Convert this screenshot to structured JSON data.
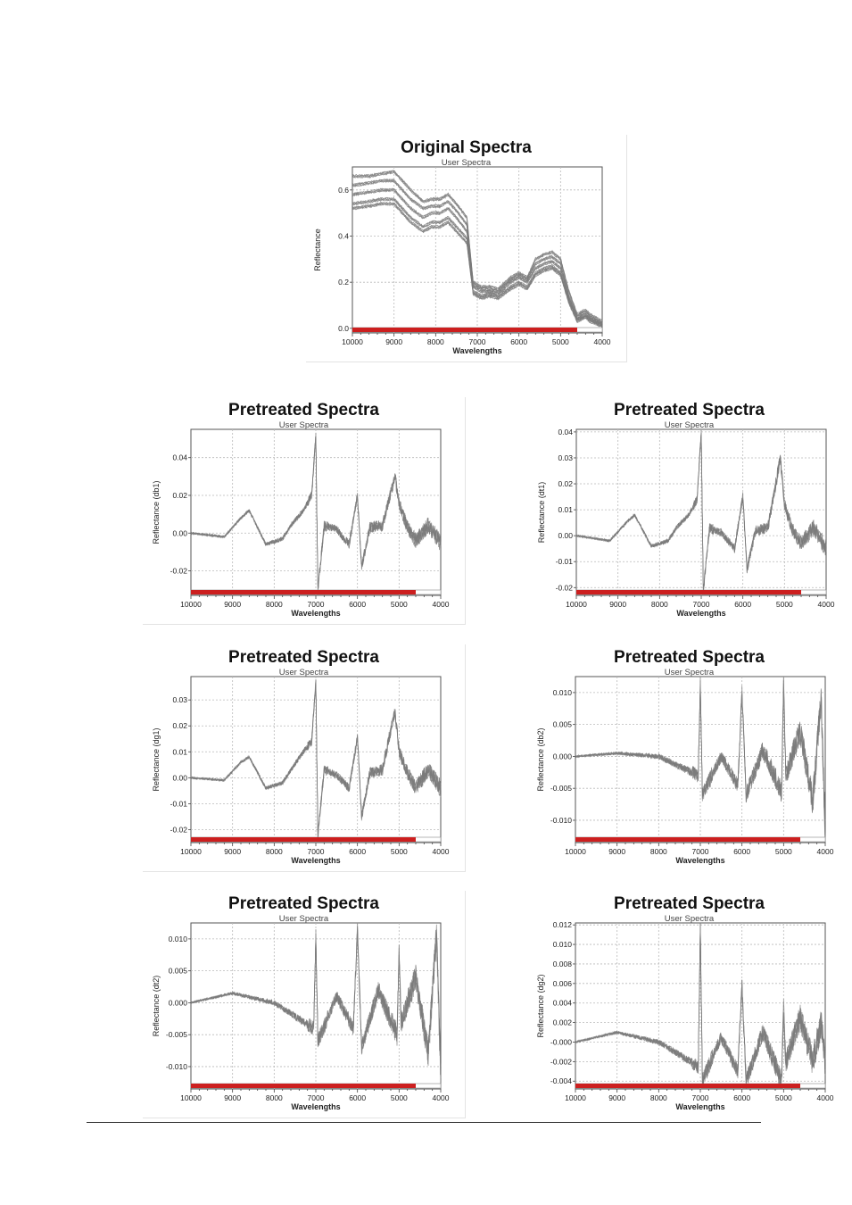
{
  "chart_data": [
    {
      "type": "line",
      "title": "Original Spectra",
      "subtitle": "User Spectra",
      "xlabel": "Wavelengths",
      "ylabel": "Reflectance",
      "xlim": [
        10000,
        4000
      ],
      "ylim": [
        -0.02,
        0.7
      ],
      "xticks": [
        10000,
        9000,
        8000,
        7000,
        6000,
        5000,
        4000
      ],
      "yticks": [
        0.0,
        0.2,
        0.4,
        0.6
      ],
      "ytick_labels": [
        "0.0",
        "0.2",
        "0.4",
        "0.6"
      ],
      "grid": true,
      "range_bar": [
        10000,
        4600
      ],
      "line_color": "#7a7a7a",
      "shape": "original",
      "x": [
        10000,
        9600,
        9300,
        9000,
        8800,
        8600,
        8300,
        8100,
        7900,
        7700,
        7500,
        7250,
        7100,
        6900,
        6700,
        6500,
        6200,
        6000,
        5800,
        5600,
        5400,
        5200,
        5000,
        4800,
        4600,
        4400,
        4300,
        4000
      ],
      "series": [
        {
          "values": [
            0.66,
            0.66,
            0.67,
            0.68,
            0.64,
            0.6,
            0.55,
            0.56,
            0.56,
            0.58,
            0.54,
            0.48,
            0.2,
            0.18,
            0.18,
            0.17,
            0.22,
            0.24,
            0.22,
            0.3,
            0.32,
            0.33,
            0.3,
            0.16,
            0.06,
            0.08,
            0.06,
            0.03
          ]
        },
        {
          "values": [
            0.62,
            0.63,
            0.64,
            0.64,
            0.6,
            0.56,
            0.52,
            0.53,
            0.53,
            0.55,
            0.51,
            0.45,
            0.19,
            0.17,
            0.17,
            0.16,
            0.21,
            0.23,
            0.21,
            0.28,
            0.3,
            0.31,
            0.28,
            0.14,
            0.05,
            0.07,
            0.05,
            0.02
          ]
        },
        {
          "values": [
            0.58,
            0.59,
            0.6,
            0.6,
            0.56,
            0.52,
            0.48,
            0.5,
            0.5,
            0.52,
            0.48,
            0.42,
            0.18,
            0.16,
            0.16,
            0.15,
            0.2,
            0.22,
            0.2,
            0.26,
            0.28,
            0.29,
            0.26,
            0.13,
            0.04,
            0.06,
            0.04,
            0.02
          ]
        },
        {
          "values": [
            0.54,
            0.55,
            0.56,
            0.56,
            0.52,
            0.48,
            0.44,
            0.46,
            0.46,
            0.48,
            0.44,
            0.39,
            0.16,
            0.14,
            0.15,
            0.14,
            0.18,
            0.2,
            0.18,
            0.24,
            0.26,
            0.27,
            0.24,
            0.12,
            0.04,
            0.05,
            0.04,
            0.01
          ]
        },
        {
          "values": [
            0.52,
            0.53,
            0.54,
            0.54,
            0.5,
            0.46,
            0.42,
            0.44,
            0.44,
            0.46,
            0.42,
            0.37,
            0.15,
            0.13,
            0.14,
            0.13,
            0.17,
            0.19,
            0.17,
            0.23,
            0.25,
            0.26,
            0.23,
            0.11,
            0.03,
            0.05,
            0.03,
            0.01
          ]
        }
      ]
    },
    {
      "type": "line",
      "title": "Pretreated Spectra",
      "subtitle": "User Spectra",
      "xlabel": "Wavelengths",
      "ylabel": "Reflectance (db1)",
      "xlim": [
        10000,
        4000
      ],
      "ylim": [
        -0.033,
        0.055
      ],
      "xticks": [
        10000,
        9000,
        8000,
        7000,
        6000,
        5000,
        4000
      ],
      "yticks": [
        -0.02,
        0.0,
        0.02,
        0.04
      ],
      "ytick_labels": [
        "-0.02",
        "0.00",
        "0.02",
        "0.04"
      ],
      "grid": true,
      "range_bar": [
        10000,
        4600
      ],
      "line_color": "#7a7a7a",
      "shape": "deriv1",
      "x": [
        10000,
        9200,
        8800,
        8600,
        8400,
        8200,
        7800,
        7600,
        7300,
        7100,
        7000,
        6950,
        6800,
        6500,
        6200,
        6000,
        5900,
        5700,
        5400,
        5100,
        5000,
        4800,
        4600,
        4300,
        4000
      ],
      "series": [
        {
          "values": [
            0.0,
            -0.002,
            0.008,
            0.012,
            0.003,
            -0.006,
            -0.003,
            0.004,
            0.012,
            0.02,
            0.052,
            -0.03,
            0.004,
            0.002,
            -0.006,
            0.02,
            -0.018,
            0.003,
            0.004,
            0.03,
            0.016,
            0.003,
            -0.004,
            0.004,
            -0.005
          ]
        }
      ]
    },
    {
      "type": "line",
      "title": "Pretreated Spectra",
      "subtitle": "User Spectra",
      "xlabel": "Wavelengths",
      "ylabel": "Reflectance (dt1)",
      "xlim": [
        10000,
        4000
      ],
      "ylim": [
        -0.023,
        0.041
      ],
      "xticks": [
        10000,
        9000,
        8000,
        7000,
        6000,
        5000,
        4000
      ],
      "yticks": [
        -0.02,
        -0.01,
        0.0,
        0.01,
        0.02,
        0.03,
        0.04
      ],
      "ytick_labels": [
        "-0.02",
        "-0.01",
        "0.00",
        "0.01",
        "0.02",
        "0.03",
        "0.04"
      ],
      "grid": true,
      "range_bar": [
        10000,
        4600
      ],
      "line_color": "#7a7a7a",
      "shape": "deriv1",
      "x": [
        10000,
        9200,
        8800,
        8600,
        8400,
        8200,
        7800,
        7600,
        7300,
        7100,
        7000,
        6950,
        6800,
        6500,
        6200,
        6000,
        5900,
        5700,
        5400,
        5100,
        5000,
        4800,
        4600,
        4300,
        4000
      ],
      "series": [
        {
          "values": [
            0.0,
            -0.002,
            0.005,
            0.008,
            0.002,
            -0.004,
            -0.002,
            0.003,
            0.008,
            0.014,
            0.04,
            -0.021,
            0.003,
            0.001,
            -0.005,
            0.015,
            -0.013,
            0.002,
            0.003,
            0.03,
            0.012,
            0.002,
            -0.003,
            0.003,
            -0.005
          ]
        }
      ]
    },
    {
      "type": "line",
      "title": "Pretreated Spectra",
      "subtitle": "User Spectra",
      "xlabel": "Wavelengths",
      "ylabel": "Reflectance (dg1)",
      "xlim": [
        10000,
        4000
      ],
      "ylim": [
        -0.025,
        0.039
      ],
      "xticks": [
        10000,
        9000,
        8000,
        7000,
        6000,
        5000,
        4000
      ],
      "yticks": [
        -0.02,
        -0.01,
        0.0,
        0.01,
        0.02,
        0.03
      ],
      "ytick_labels": [
        "-0.02",
        "-0.01",
        "0.00",
        "0.01",
        "0.02",
        "0.03"
      ],
      "grid": true,
      "range_bar": [
        10000,
        4600
      ],
      "line_color": "#7a7a7a",
      "shape": "deriv1",
      "x": [
        10000,
        9200,
        8800,
        8600,
        8400,
        8200,
        7800,
        7600,
        7300,
        7100,
        7000,
        6950,
        6800,
        6500,
        6200,
        6000,
        5900,
        5700,
        5400,
        5100,
        5000,
        4800,
        4600,
        4300,
        4000
      ],
      "series": [
        {
          "values": [
            0.0,
            -0.001,
            0.006,
            0.008,
            0.002,
            -0.004,
            -0.002,
            0.003,
            0.01,
            0.014,
            0.037,
            -0.022,
            0.003,
            0.001,
            -0.004,
            0.016,
            -0.015,
            0.002,
            0.003,
            0.026,
            0.01,
            0.002,
            -0.004,
            0.003,
            -0.004
          ]
        }
      ]
    },
    {
      "type": "line",
      "title": "Pretreated Spectra",
      "subtitle": "User Spectra",
      "xlabel": "Wavelengths",
      "ylabel": "Reflectance (db2)",
      "xlim": [
        10000,
        4000
      ],
      "ylim": [
        -0.0135,
        0.0125
      ],
      "xticks": [
        10000,
        9000,
        8000,
        7000,
        6000,
        5000,
        4000
      ],
      "yticks": [
        -0.01,
        -0.005,
        0.0,
        0.005,
        0.01
      ],
      "ytick_labels": [
        "-0.010",
        "-0.005",
        "0.000",
        "0.005",
        "0.010"
      ],
      "grid": true,
      "range_bar": [
        10000,
        4600
      ],
      "line_color": "#7a7a7a",
      "shape": "deriv2",
      "x": [
        10000,
        9000,
        8000,
        7050,
        7000,
        6950,
        6500,
        6100,
        6000,
        5900,
        5500,
        5050,
        5000,
        4950,
        4600,
        4300,
        4100,
        4000
      ],
      "series": [
        {
          "values": [
            0.0,
            0.0005,
            0.0,
            -0.003,
            0.0115,
            -0.006,
            0.0,
            -0.0045,
            0.01,
            -0.006,
            0.001,
            -0.0055,
            0.0115,
            -0.003,
            0.004,
            -0.007,
            0.009,
            -0.012
          ]
        }
      ]
    },
    {
      "type": "line",
      "title": "Pretreated Spectra",
      "subtitle": "User Spectra",
      "xlabel": "Wavelengths",
      "ylabel": "Reflectance (dt2)",
      "xlim": [
        10000,
        4000
      ],
      "ylim": [
        -0.0135,
        0.0125
      ],
      "xticks": [
        10000,
        9000,
        8000,
        7000,
        6000,
        5000,
        4000
      ],
      "yticks": [
        -0.01,
        -0.005,
        0.0,
        0.005,
        0.01
      ],
      "ytick_labels": [
        "-0.010",
        "-0.005",
        "0.000",
        "0.005",
        "0.010"
      ],
      "grid": true,
      "range_bar": [
        10000,
        4600
      ],
      "line_color": "#7a7a7a",
      "shape": "deriv2",
      "x": [
        10000,
        9000,
        8000,
        7050,
        7000,
        6950,
        6500,
        6100,
        6000,
        5900,
        5500,
        5050,
        5000,
        4950,
        4600,
        4300,
        4100,
        4000
      ],
      "series": [
        {
          "values": [
            0.0,
            0.0015,
            0.0,
            -0.004,
            0.0105,
            -0.006,
            0.001,
            -0.004,
            0.0115,
            -0.007,
            0.002,
            -0.005,
            0.008,
            -0.003,
            0.004,
            -0.008,
            0.011,
            -0.012
          ]
        }
      ]
    },
    {
      "type": "line",
      "title": "Pretreated Spectra",
      "subtitle": "User Spectra",
      "xlabel": "Wavelengths",
      "ylabel": "Reflectance (dg2)",
      "xlim": [
        10000,
        4000
      ],
      "ylim": [
        -0.0048,
        0.0122
      ],
      "xticks": [
        10000,
        9000,
        8000,
        7000,
        6000,
        5000,
        4000
      ],
      "yticks": [
        -0.004,
        -0.002,
        0.0,
        0.002,
        0.004,
        0.006,
        0.008,
        0.01,
        0.012
      ],
      "ytick_labels": [
        "-0.004",
        "-0.002",
        "-0.000",
        "0.002",
        "0.004",
        "0.006",
        "0.008",
        "0.010",
        "0.012"
      ],
      "grid": true,
      "range_bar": [
        10000,
        4600
      ],
      "line_color": "#7a7a7a",
      "shape": "deriv2",
      "x": [
        10000,
        9000,
        8000,
        7050,
        7000,
        6950,
        6500,
        6100,
        6000,
        5900,
        5500,
        5050,
        5000,
        4950,
        4600,
        4300,
        4100,
        4000
      ],
      "series": [
        {
          "values": [
            0.0,
            0.001,
            0.0,
            -0.0025,
            0.012,
            -0.004,
            0.0005,
            -0.003,
            0.0058,
            -0.004,
            0.001,
            -0.004,
            0.0035,
            -0.002,
            0.0025,
            -0.002,
            0.002,
            -0.002
          ]
        }
      ]
    }
  ]
}
